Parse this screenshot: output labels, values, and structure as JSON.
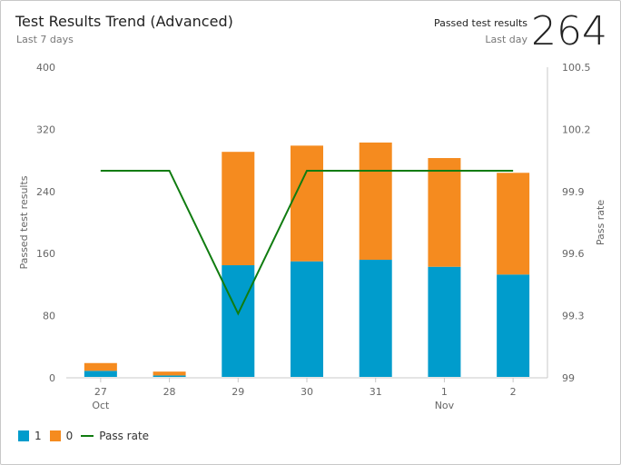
{
  "header": {
    "title": "Test Results Trend (Advanced)",
    "subtitle": "Last 7 days",
    "kpi_label": "Passed test results",
    "kpi_sub": "Last day",
    "kpi_value": "264"
  },
  "chart_data": {
    "type": "bar+line",
    "categories": [
      "27",
      "28",
      "29",
      "30",
      "31",
      "1",
      "2"
    ],
    "category_sublabels": [
      "Oct",
      "",
      "",
      "",
      "",
      "Nov",
      ""
    ],
    "series": [
      {
        "name": "1",
        "kind": "stacked-bar",
        "color": "#009ccc",
        "values": [
          9,
          3,
          145,
          150,
          152,
          143,
          133
        ]
      },
      {
        "name": "0",
        "kind": "stacked-bar",
        "color": "#f58b1f",
        "values": [
          10,
          5,
          146,
          149,
          151,
          140,
          131
        ]
      },
      {
        "name": "Pass rate",
        "kind": "line",
        "axis": "right",
        "color": "#107c10",
        "values": [
          100,
          100,
          99.31,
          100,
          100,
          100,
          100
        ]
      }
    ],
    "ylabel": "Passed test results",
    "y2label": "Pass rate",
    "ylim": [
      0,
      400
    ],
    "yticks": [
      0,
      80,
      160,
      240,
      320,
      400
    ],
    "y2lim": [
      99,
      100.5
    ],
    "y2ticks": [
      "99",
      "99.3",
      "99.6",
      "99.9",
      "100.2",
      "100.5"
    ],
    "grid": false,
    "legend": "bottom-left"
  }
}
